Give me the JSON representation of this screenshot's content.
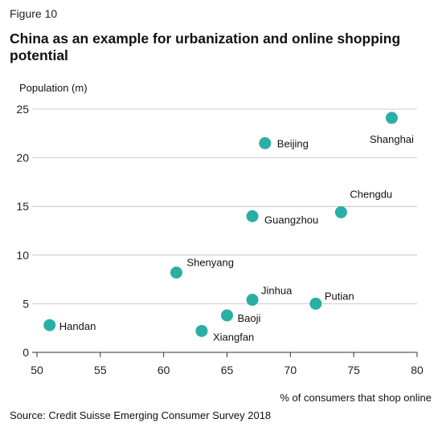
{
  "figure_label": "Figure 10",
  "source": "Source: Credit Suisse  Emerging Consumer Survey 2018",
  "chart_data": {
    "type": "scatter",
    "title": "China as an example for urbanization and online shopping potential",
    "xlabel": "% of consumers that shop online",
    "ylabel": "Population (m)",
    "xlim": [
      50,
      80
    ],
    "ylim": [
      0,
      25
    ],
    "xticks": [
      50,
      55,
      60,
      65,
      70,
      75,
      80
    ],
    "yticks": [
      0,
      5,
      10,
      15,
      20,
      25
    ],
    "grid": "horizontal",
    "marker_color": "#2aafa5",
    "points": [
      {
        "label": "Shanghai",
        "x": 78,
        "y": 24.1
      },
      {
        "label": "Beijing",
        "x": 68,
        "y": 21.5
      },
      {
        "label": "Chengdu",
        "x": 74,
        "y": 14.4
      },
      {
        "label": "Guangzhou",
        "x": 67,
        "y": 14.0
      },
      {
        "label": "Shenyang",
        "x": 61,
        "y": 8.2
      },
      {
        "label": "Jinhua",
        "x": 67,
        "y": 5.4
      },
      {
        "label": "Putian",
        "x": 72,
        "y": 5.0
      },
      {
        "label": "Baoji",
        "x": 65,
        "y": 3.8
      },
      {
        "label": "Handan",
        "x": 51,
        "y": 2.8
      },
      {
        "label": "Xiangfan",
        "x": 63,
        "y": 2.2
      }
    ]
  }
}
